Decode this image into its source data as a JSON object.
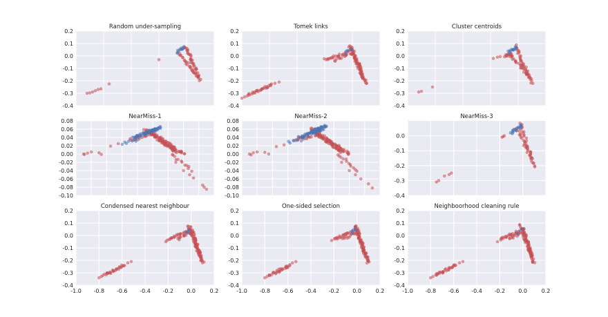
{
  "colors": {
    "panel_bg": "#EAEAF2",
    "grid": "#FFFFFF",
    "majority": "#C44E52",
    "minority": "#4C72B0"
  },
  "chart_data": [
    {
      "type": "scatter",
      "title": "Random under-sampling",
      "xlim": [
        -0.8,
        0.2
      ],
      "ylim": [
        -0.4,
        0.2
      ],
      "xticks": [],
      "xtick_labels": [],
      "yticks": [
        -0.4,
        -0.3,
        -0.2,
        -0.1,
        0.0,
        0.1,
        0.2
      ],
      "ytick_labels": [
        "-0.4",
        "-0.3",
        "-0.2",
        "-0.1",
        "0.0",
        "0.1",
        "0.2"
      ],
      "grid": true,
      "blue_density": "medium",
      "series": [
        {
          "color": "#C44E52",
          "points": [
            [
              -0.72,
              -0.3
            ],
            [
              -0.7,
              -0.297
            ],
            [
              -0.68,
              -0.29
            ],
            [
              -0.66,
              -0.28
            ],
            [
              -0.64,
              -0.27
            ],
            [
              -0.62,
              -0.265
            ],
            [
              -0.56,
              -0.225
            ],
            [
              -0.2,
              -0.03
            ]
          ]
        },
        {
          "color": "#C44E52",
          "clusters": [
            [
              -0.05,
              0.02,
              0.08,
              -0.17,
              26
            ],
            [
              -0.01,
              0.08,
              0.1,
              -0.19,
              40
            ]
          ]
        },
        {
          "color": "#4C72B0",
          "clusters": [
            [
              -0.07,
              0.03,
              -0.01,
              0.07,
              12
            ]
          ]
        }
      ]
    },
    {
      "type": "scatter",
      "title": "Tomek links",
      "xlim": [
        -0.8,
        0.2
      ],
      "ylim": [
        -0.4,
        0.2
      ],
      "xticks": [],
      "xtick_labels": [],
      "yticks": [
        -0.4,
        -0.3,
        -0.2,
        -0.1,
        0.0,
        0.1,
        0.2
      ],
      "ytick_labels": [
        "-0.4",
        "-0.3",
        "-0.2",
        "-0.1",
        "0.0",
        "0.1",
        "0.2"
      ],
      "grid": true,
      "series": [
        {
          "color": "#C44E52",
          "points": [
            [
              -0.8,
              -0.34
            ],
            [
              -0.78,
              -0.33
            ],
            [
              -0.56,
              -0.22
            ],
            [
              -0.53,
              -0.21
            ]
          ]
        },
        {
          "color": "#C44E52",
          "clusters": [
            [
              -0.76,
              -0.32,
              -0.58,
              -0.23,
              28
            ],
            [
              -0.2,
              -0.03,
              -0.03,
              0.03,
              22
            ],
            [
              -0.13,
              -0.04,
              -0.01,
              0.02,
              12
            ],
            [
              -0.02,
              0.08,
              0.1,
              -0.22,
              55
            ],
            [
              0.0,
              0.06,
              0.08,
              -0.17,
              28
            ]
          ]
        },
        {
          "color": "#4C72B0",
          "clusters": [
            [
              -0.05,
              0.02,
              -0.01,
              0.06,
              5
            ]
          ]
        }
      ]
    },
    {
      "type": "scatter",
      "title": "Cluster centroids",
      "xlim": [
        -0.8,
        0.2
      ],
      "ylim": [
        -0.4,
        0.2
      ],
      "xticks": [],
      "xtick_labels": [],
      "yticks": [
        -0.4,
        -0.3,
        -0.2,
        -0.1,
        0.0,
        0.1,
        0.2
      ],
      "ytick_labels": [
        "-0.4",
        "-0.3",
        "-0.2",
        "-0.1",
        "0.0",
        "0.1",
        "0.2"
      ],
      "grid": true,
      "series": [
        {
          "color": "#C44E52",
          "points": [
            [
              -0.72,
              -0.29
            ],
            [
              -0.7,
              -0.285
            ],
            [
              -0.62,
              -0.25
            ],
            [
              -0.18,
              -0.02
            ],
            [
              -0.15,
              -0.01
            ],
            [
              -0.13,
              -0.005
            ]
          ]
        },
        {
          "color": "#C44E52",
          "clusters": [
            [
              -0.06,
              0.02,
              0.08,
              -0.17,
              26
            ],
            [
              -0.02,
              0.08,
              0.1,
              -0.22,
              38
            ],
            [
              -0.1,
              0.0,
              -0.05,
              0.01,
              10
            ]
          ]
        },
        {
          "color": "#4C72B0",
          "clusters": [
            [
              -0.07,
              0.03,
              -0.01,
              0.07,
              14
            ]
          ]
        }
      ]
    },
    {
      "type": "scatter",
      "title": "NearMiss-1",
      "xlim": [
        -0.12,
        0.06
      ],
      "ylim": [
        -0.1,
        0.08
      ],
      "xticks": [],
      "xtick_labels": [],
      "yticks": [
        -0.1,
        -0.08,
        -0.06,
        -0.04,
        -0.02,
        0.0,
        0.02,
        0.04,
        0.06,
        0.08
      ],
      "ytick_labels": [
        "-0.10",
        "-0.08",
        "-0.06",
        "-0.04",
        "-0.02",
        "0.00",
        "0.02",
        "0.04",
        "0.06",
        "0.08"
      ],
      "grid": true,
      "series": [
        {
          "color": "#C44E52",
          "points": [
            [
              -0.11,
              0.0
            ],
            [
              -0.109,
              -0.001
            ],
            [
              -0.105,
              0.002
            ],
            [
              -0.1,
              0.005
            ],
            [
              -0.09,
              0.003
            ],
            [
              -0.087,
              -0.001
            ],
            [
              -0.075,
              0.019
            ],
            [
              -0.065,
              0.025
            ],
            [
              0.01,
              -0.02
            ],
            [
              0.02,
              -0.04
            ],
            [
              0.028,
              -0.05
            ],
            [
              0.033,
              -0.058
            ],
            [
              0.045,
              -0.075
            ],
            [
              0.047,
              -0.08
            ],
            [
              0.05,
              -0.085
            ]
          ]
        },
        {
          "color": "#C44E52",
          "clusters": [
            [
              -0.05,
              0.035,
              -0.02,
              0.045,
              16
            ],
            [
              -0.03,
              0.06,
              0.01,
              0.005,
              55
            ],
            [
              -0.02,
              0.05,
              0.02,
              0.0,
              45
            ],
            [
              0.005,
              0.0,
              0.03,
              -0.04,
              12
            ]
          ]
        },
        {
          "color": "#4C72B0",
          "clusters": [
            [
              -0.045,
              0.04,
              -0.015,
              0.06,
              40
            ],
            [
              -0.03,
              0.05,
              -0.01,
              0.065,
              30
            ],
            [
              -0.06,
              0.025,
              -0.04,
              0.035,
              8
            ]
          ]
        }
      ]
    },
    {
      "type": "scatter",
      "title": "NearMiss-2",
      "xlim": [
        -0.12,
        0.06
      ],
      "ylim": [
        -0.1,
        0.08
      ],
      "xticks": [],
      "xtick_labels": [],
      "yticks": [
        -0.1,
        -0.08,
        -0.06,
        -0.04,
        -0.02,
        0.0,
        0.02,
        0.04,
        0.06,
        0.08
      ],
      "ytick_labels": [
        "-0.10",
        "-0.08",
        "-0.06",
        "-0.04",
        "-0.02",
        "0.00",
        "0.02",
        "0.04",
        "0.06",
        "0.08"
      ],
      "grid": true,
      "series": [
        {
          "color": "#C44E52",
          "points": [
            [
              -0.11,
              0.0
            ],
            [
              -0.108,
              -0.002
            ],
            [
              -0.105,
              0.003
            ],
            [
              -0.1,
              0.005
            ],
            [
              -0.09,
              0.004
            ],
            [
              -0.085,
              0.0
            ],
            [
              -0.075,
              0.018
            ],
            [
              -0.065,
              0.022
            ],
            [
              0.01,
              -0.02
            ],
            [
              0.02,
              -0.04
            ],
            [
              0.028,
              -0.05
            ],
            [
              0.035,
              -0.06
            ],
            [
              0.045,
              -0.072
            ],
            [
              0.05,
              -0.082
            ]
          ]
        },
        {
          "color": "#C44E52",
          "clusters": [
            [
              -0.05,
              0.035,
              -0.02,
              0.045,
              16
            ],
            [
              -0.03,
              0.06,
              0.01,
              0.005,
              55
            ],
            [
              -0.02,
              0.05,
              0.02,
              0.0,
              45
            ],
            [
              0.005,
              0.0,
              0.03,
              -0.04,
              12
            ]
          ]
        },
        {
          "color": "#4C72B0",
          "clusters": [
            [
              -0.045,
              0.04,
              -0.015,
              0.06,
              45
            ],
            [
              -0.03,
              0.055,
              -0.01,
              0.068,
              30
            ],
            [
              -0.06,
              0.028,
              -0.04,
              0.035,
              8
            ]
          ]
        }
      ]
    },
    {
      "type": "scatter",
      "title": "NearMiss-3",
      "xlim": [
        -1.0,
        0.2
      ],
      "ylim": [
        -0.4,
        0.1
      ],
      "xticks": [],
      "xtick_labels": [],
      "yticks": [
        -0.4,
        -0.3,
        -0.2,
        -0.1,
        0.0
      ],
      "ytick_labels": [
        "-0.4",
        "-0.3",
        "-0.2",
        "-0.1",
        "0.0"
      ],
      "grid": true,
      "series": [
        {
          "color": "#C44E52",
          "points": [
            [
              -0.75,
              -0.31
            ],
            [
              -0.73,
              -0.3
            ],
            [
              -0.68,
              -0.27
            ],
            [
              -0.64,
              -0.26
            ],
            [
              -0.62,
              -0.25
            ],
            [
              -0.18,
              -0.01
            ],
            [
              -0.17,
              -0.005
            ],
            [
              -0.16,
              0.0
            ]
          ]
        },
        {
          "color": "#C44E52",
          "clusters": [
            [
              -0.05,
              0.05,
              0.08,
              -0.16,
              22
            ],
            [
              -0.02,
              0.08,
              0.1,
              -0.21,
              30
            ]
          ]
        },
        {
          "color": "#4C72B0",
          "clusters": [
            [
              -0.1,
              0.02,
              -0.01,
              0.07,
              18
            ]
          ]
        }
      ]
    },
    {
      "type": "scatter",
      "title": "Condensed nearest neighbour",
      "xlim": [
        -1.0,
        0.2
      ],
      "ylim": [
        -0.4,
        0.2
      ],
      "xticks": [
        -1.0,
        -0.8,
        -0.6,
        -0.4,
        -0.2,
        0.0,
        0.2
      ],
      "xtick_labels": [
        "-1.0",
        "-0.8",
        "-0.6",
        "-0.4",
        "-0.2",
        "0.0",
        "0.2"
      ],
      "yticks": [
        -0.4,
        -0.3,
        -0.2,
        -0.1,
        0.0,
        0.1,
        0.2
      ],
      "ytick_labels": [
        "-0.4",
        "-0.3",
        "-0.2",
        "-0.1",
        "0.0",
        "0.1",
        "0.2"
      ],
      "grid": true,
      "series": [
        {
          "color": "#C44E52",
          "points": [
            [
              -0.8,
              -0.34
            ],
            [
              -0.78,
              -0.33
            ],
            [
              -0.55,
              -0.22
            ],
            [
              -0.52,
              -0.21
            ],
            [
              -0.22,
              -0.05
            ]
          ]
        },
        {
          "color": "#C44E52",
          "clusters": [
            [
              -0.76,
              -0.32,
              -0.58,
              -0.24,
              28
            ],
            [
              -0.2,
              -0.03,
              -0.04,
              0.03,
              20
            ],
            [
              -0.12,
              -0.03,
              -0.01,
              0.02,
              12
            ],
            [
              -0.02,
              0.08,
              0.1,
              -0.22,
              55
            ],
            [
              0.0,
              0.06,
              0.08,
              -0.17,
              28
            ]
          ]
        },
        {
          "color": "#4C72B0",
          "clusters": [
            [
              -0.04,
              0.02,
              -0.01,
              0.05,
              4
            ]
          ]
        }
      ]
    },
    {
      "type": "scatter",
      "title": "One-sided selection",
      "xlim": [
        -1.0,
        0.2
      ],
      "ylim": [
        -0.4,
        0.2
      ],
      "xticks": [
        -1.0,
        -0.8,
        -0.6,
        -0.4,
        -0.2,
        0.0,
        0.2
      ],
      "xtick_labels": [
        "-1.0",
        "-0.8",
        "-0.6",
        "-0.4",
        "-0.2",
        "0.0",
        "0.2"
      ],
      "yticks": [
        -0.4,
        -0.3,
        -0.2,
        -0.1,
        0.0,
        0.1,
        0.2
      ],
      "ytick_labels": [
        "-0.4",
        "-0.3",
        "-0.2",
        "-0.1",
        "0.0",
        "0.1",
        "0.2"
      ],
      "grid": true,
      "series": [
        {
          "color": "#C44E52",
          "points": [
            [
              -0.8,
              -0.34
            ],
            [
              -0.78,
              -0.33
            ],
            [
              -0.56,
              -0.22
            ],
            [
              -0.53,
              -0.21
            ],
            [
              -0.22,
              -0.04
            ]
          ]
        },
        {
          "color": "#C44E52",
          "clusters": [
            [
              -0.76,
              -0.32,
              -0.58,
              -0.24,
              28
            ],
            [
              -0.2,
              -0.03,
              -0.04,
              0.03,
              20
            ],
            [
              -0.12,
              -0.03,
              -0.01,
              0.02,
              12
            ],
            [
              -0.02,
              0.08,
              0.1,
              -0.22,
              55
            ],
            [
              0.0,
              0.06,
              0.08,
              -0.17,
              28
            ]
          ]
        },
        {
          "color": "#4C72B0",
          "clusters": [
            [
              -0.05,
              0.02,
              -0.01,
              0.06,
              5
            ]
          ]
        }
      ]
    },
    {
      "type": "scatter",
      "title": "Neighboorhood cleaning rule",
      "xlim": [
        -1.0,
        0.2
      ],
      "ylim": [
        -0.4,
        0.2
      ],
      "xticks": [
        -1.0,
        -0.8,
        -0.6,
        -0.4,
        -0.2,
        0.0,
        0.2
      ],
      "xtick_labels": [
        "-1.0",
        "-0.8",
        "-0.6",
        "-0.4",
        "-0.2",
        "0.0",
        "0.2"
      ],
      "yticks": [
        -0.4,
        -0.3,
        -0.2,
        -0.1,
        0.0,
        0.1,
        0.2
      ],
      "ytick_labels": [
        "-0.4",
        "-0.3",
        "-0.2",
        "-0.1",
        "0.0",
        "0.1",
        "0.2"
      ],
      "grid": true,
      "series": [
        {
          "color": "#C44E52",
          "points": [
            [
              -0.8,
              -0.34
            ],
            [
              -0.78,
              -0.33
            ],
            [
              -0.55,
              -0.22
            ],
            [
              -0.52,
              -0.21
            ],
            [
              -0.22,
              -0.05
            ]
          ]
        },
        {
          "color": "#C44E52",
          "clusters": [
            [
              -0.76,
              -0.32,
              -0.58,
              -0.24,
              28
            ],
            [
              -0.2,
              -0.03,
              -0.04,
              0.03,
              20
            ],
            [
              -0.12,
              -0.03,
              -0.01,
              0.02,
              12
            ],
            [
              -0.02,
              0.08,
              0.1,
              -0.22,
              55
            ],
            [
              0.0,
              0.06,
              0.08,
              -0.17,
              28
            ]
          ]
        },
        {
          "color": "#4C72B0",
          "clusters": [
            [
              -0.04,
              0.02,
              -0.01,
              0.05,
              3
            ]
          ]
        }
      ]
    }
  ]
}
